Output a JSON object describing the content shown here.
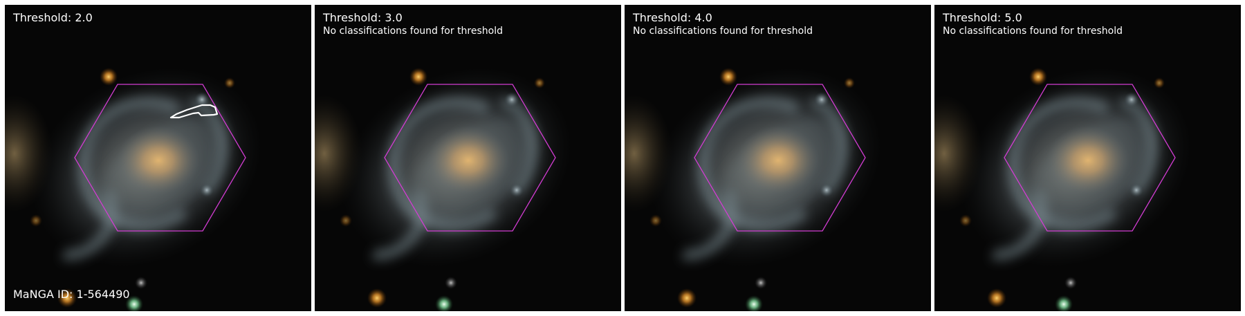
{
  "figure": {
    "panels": [
      {
        "threshold_label": "Threshold: 2.0",
        "note": "",
        "galaxy_id_label": "MaNGA ID: 1-564490",
        "has_classification_contour": true
      },
      {
        "threshold_label": "Threshold: 3.0",
        "note": "No classifications found for threshold",
        "galaxy_id_label": "",
        "has_classification_contour": false
      },
      {
        "threshold_label": "Threshold: 4.0",
        "note": "No classifications found for threshold",
        "galaxy_id_label": "",
        "has_classification_contour": false
      },
      {
        "threshold_label": "Threshold: 5.0",
        "note": "No classifications found for threshold",
        "galaxy_id_label": "",
        "has_classification_contour": false
      }
    ]
  },
  "colors": {
    "ifu_hexagon": "#d23cd2",
    "contour": "#ffffff",
    "label_text": "#ffffff",
    "sky_background": "#050505",
    "bulge": "#caa46a",
    "disk": "#8f9aa0"
  }
}
